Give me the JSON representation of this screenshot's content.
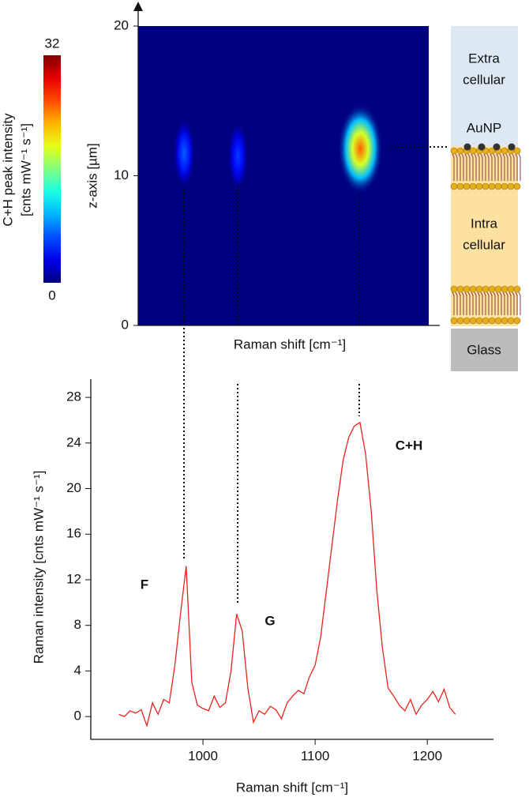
{
  "chart_data": [
    {
      "type": "heatmap",
      "xlabel": "Raman shift [cm⁻¹]",
      "ylabel": "z-axis [µm]",
      "xlim": [
        942,
        1201
      ],
      "ylim": [
        0,
        20
      ],
      "yticks": [
        0,
        10,
        20
      ],
      "spots": [
        {
          "x": 983,
          "z": 11.5,
          "intensity": 7
        },
        {
          "x": 1031,
          "z": 11.3,
          "intensity": 6
        },
        {
          "x": 1140,
          "z": 11.8,
          "intensity": 25
        }
      ],
      "colorbar": {
        "label": [
          "C+H peak intensity",
          "[cnts mW⁻¹ s⁻¹]"
        ],
        "lim": [
          0,
          32
        ],
        "ticks": [
          0,
          32
        ]
      }
    },
    {
      "type": "line",
      "xlabel": "Raman shift [cm⁻¹]",
      "ylabel": "Raman intensity [cnts mW⁻¹ s⁻¹]",
      "color": "#e8241c",
      "xlim": [
        900,
        1259
      ],
      "xticks": [
        1000,
        1100,
        1200
      ],
      "ylim": [
        -2,
        29.6
      ],
      "yticks": [
        0,
        4,
        8,
        12,
        16,
        20,
        24,
        28
      ],
      "x": [
        925,
        930,
        935,
        940,
        945,
        950,
        955,
        960,
        965,
        970,
        975,
        980,
        985,
        990,
        995,
        1000,
        1005,
        1010,
        1015,
        1020,
        1025,
        1030,
        1035,
        1040,
        1045,
        1050,
        1055,
        1060,
        1065,
        1070,
        1075,
        1080,
        1085,
        1090,
        1095,
        1100,
        1105,
        1110,
        1115,
        1120,
        1125,
        1130,
        1135,
        1140,
        1145,
        1150,
        1155,
        1160,
        1165,
        1170,
        1175,
        1180,
        1185,
        1190,
        1195,
        1200,
        1205,
        1210,
        1215,
        1220,
        1225
      ],
      "values": [
        0.2,
        0,
        0.5,
        0.3,
        0.6,
        -0.8,
        1.2,
        0.2,
        1.5,
        1.2,
        4.5,
        9,
        13.2,
        3,
        1,
        0.7,
        0.5,
        1.8,
        0.8,
        1.2,
        4,
        9,
        7.5,
        2.5,
        -0.5,
        0.5,
        0.2,
        0.9,
        0.6,
        -0.2,
        1.2,
        1.8,
        2.3,
        2,
        3.5,
        4.5,
        7,
        11,
        15,
        19,
        22.5,
        24.5,
        25.5,
        25.8,
        23,
        18,
        11,
        6,
        2.5,
        1.8,
        1,
        0.5,
        1.5,
        0.2,
        1,
        1.5,
        2.2,
        1.3,
        2.4,
        0.8,
        0.2
      ],
      "annotations": [
        "F",
        "G",
        "C+H"
      ]
    }
  ],
  "diagram": {
    "extra": [
      "Extra",
      "cellular"
    ],
    "aunp": "AuNP",
    "intra": [
      "Intra",
      "cellular"
    ],
    "glass": "Glass"
  }
}
